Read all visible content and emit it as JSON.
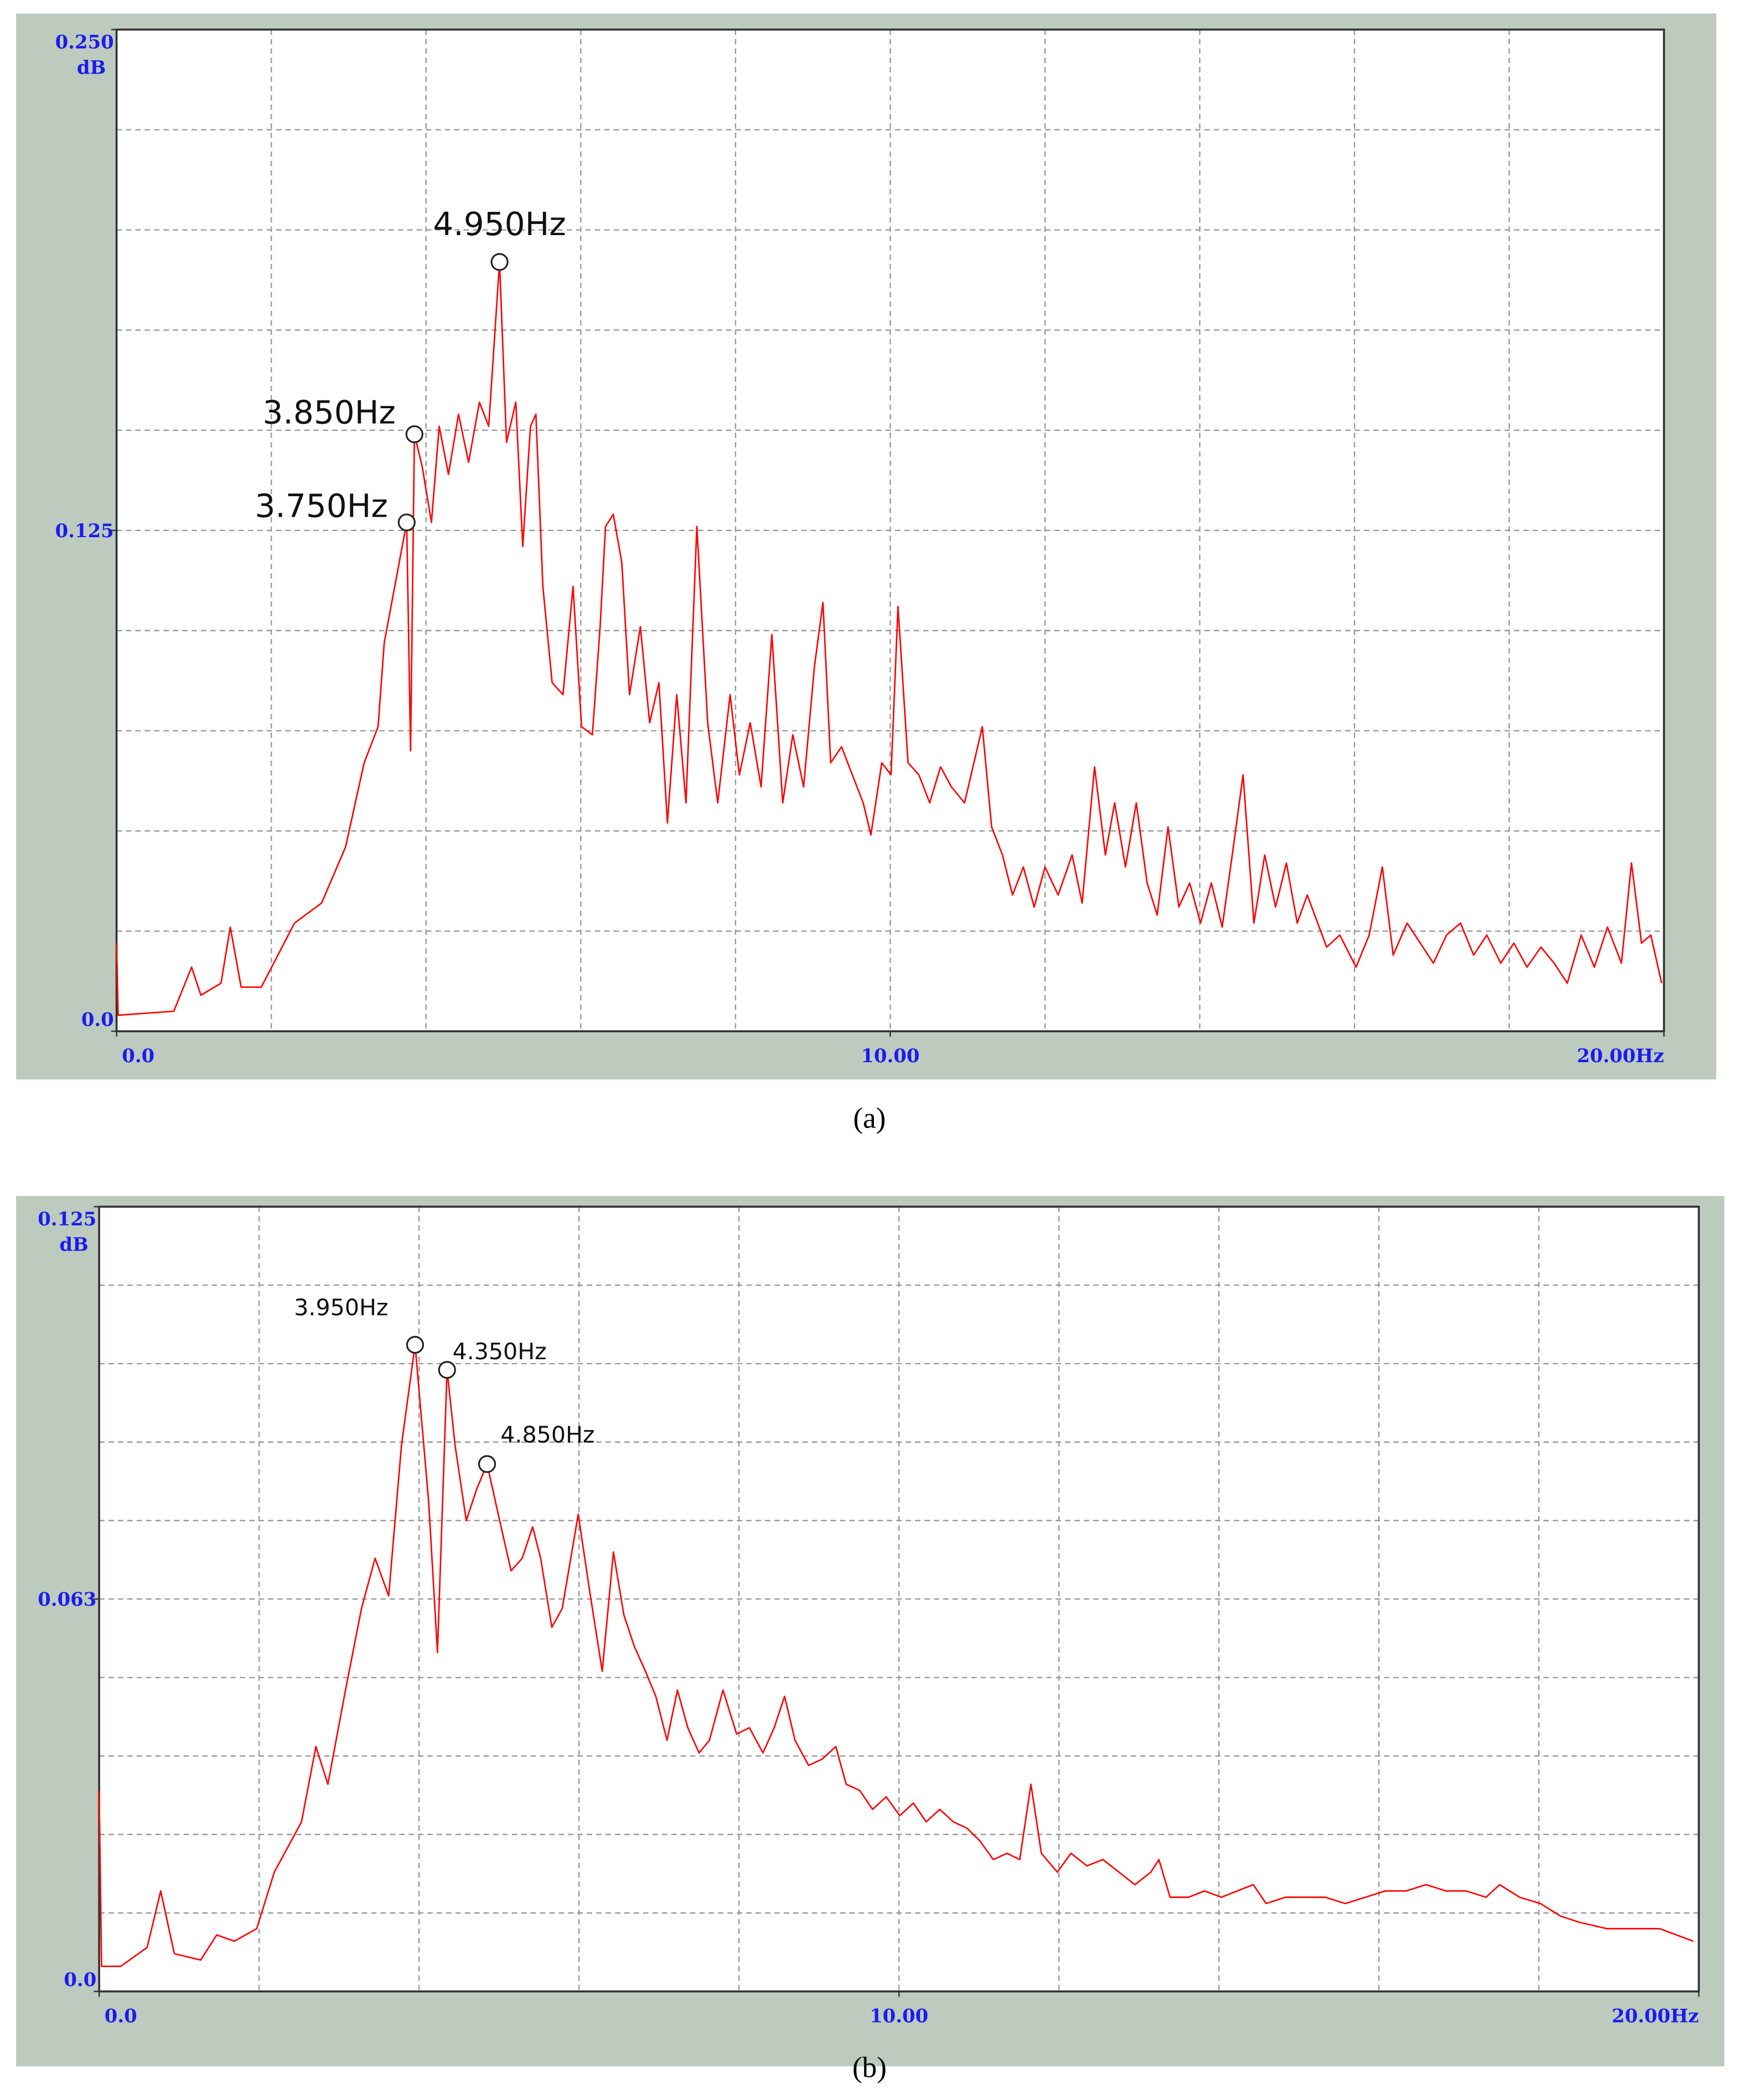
{
  "chart_data": [
    {
      "type": "line",
      "caption": "(a)",
      "ylabel": "dB",
      "color": "#ff0000",
      "xlim": [
        0,
        20
      ],
      "ylim": [
        0,
        0.25
      ],
      "xticks": [
        {
          "value": 0,
          "label": "0.0"
        },
        {
          "value": 10,
          "label": "10.00"
        },
        {
          "value": 20,
          "label": "20.00Hz"
        }
      ],
      "yticks": [
        {
          "value": 0,
          "label": "0.0"
        },
        {
          "value": 0.125,
          "label": "0.125"
        },
        {
          "value": 0.25,
          "label": "0.250"
        }
      ],
      "xgrid": [
        2,
        4,
        6,
        8,
        10,
        12,
        14,
        16,
        18
      ],
      "ygrid": [
        0.025,
        0.05,
        0.075,
        0.1,
        0.125,
        0.15,
        0.175,
        0.2,
        0.225
      ],
      "x": [
        0,
        0.02,
        0.74,
        0.97,
        1.09,
        1.35,
        1.47,
        1.61,
        1.87,
        2.3,
        2.65,
        2.96,
        3.2,
        3.38,
        3.46,
        3.75,
        3.8,
        3.85,
        3.95,
        4.07,
        4.17,
        4.29,
        4.42,
        4.55,
        4.69,
        4.81,
        4.95,
        5.04,
        5.16,
        5.25,
        5.35,
        5.42,
        5.51,
        5.63,
        5.77,
        5.9,
        6.01,
        6.15,
        6.25,
        6.32,
        6.42,
        6.53,
        6.63,
        6.77,
        6.89,
        7.01,
        7.12,
        7.24,
        7.36,
        7.5,
        7.64,
        7.77,
        7.93,
        8.05,
        8.19,
        8.33,
        8.47,
        8.61,
        8.74,
        8.88,
        9.02,
        9.13,
        9.23,
        9.37,
        9.51,
        9.65,
        9.75,
        9.89,
        10.01,
        10.1,
        10.23,
        10.37,
        10.51,
        10.65,
        10.79,
        10.96,
        11.19,
        11.31,
        11.45,
        11.58,
        11.72,
        11.86,
        12.0,
        12.17,
        12.35,
        12.48,
        12.64,
        12.78,
        12.9,
        13.04,
        13.18,
        13.32,
        13.45,
        13.59,
        13.73,
        13.87,
        14.01,
        14.15,
        14.29,
        14.42,
        14.56,
        14.7,
        14.84,
        14.98,
        15.12,
        15.26,
        15.39,
        15.64,
        15.81,
        16.02,
        16.19,
        16.36,
        16.5,
        16.68,
        16.85,
        17.02,
        17.19,
        17.37,
        17.54,
        17.71,
        17.89,
        18.06,
        18.23,
        18.41,
        18.58,
        18.75,
        18.93,
        19.1,
        19.27,
        19.45,
        19.58,
        19.71,
        19.83,
        19.97
      ],
      "values": [
        0.022,
        0.004,
        0.005,
        0.016,
        0.009,
        0.012,
        0.026,
        0.011,
        0.011,
        0.027,
        0.032,
        0.046,
        0.067,
        0.076,
        0.097,
        0.127,
        0.07,
        0.149,
        0.141,
        0.127,
        0.151,
        0.139,
        0.154,
        0.142,
        0.157,
        0.151,
        0.192,
        0.147,
        0.157,
        0.121,
        0.151,
        0.154,
        0.111,
        0.087,
        0.084,
        0.111,
        0.076,
        0.074,
        0.101,
        0.126,
        0.129,
        0.117,
        0.084,
        0.101,
        0.077,
        0.087,
        0.052,
        0.084,
        0.057,
        0.126,
        0.077,
        0.057,
        0.084,
        0.064,
        0.077,
        0.061,
        0.099,
        0.057,
        0.074,
        0.061,
        0.091,
        0.107,
        0.067,
        0.071,
        0.064,
        0.057,
        0.049,
        0.067,
        0.064,
        0.106,
        0.067,
        0.064,
        0.057,
        0.066,
        0.061,
        0.057,
        0.076,
        0.051,
        0.044,
        0.034,
        0.041,
        0.031,
        0.041,
        0.034,
        0.044,
        0.032,
        0.066,
        0.044,
        0.057,
        0.041,
        0.057,
        0.037,
        0.029,
        0.051,
        0.031,
        0.037,
        0.027,
        0.037,
        0.026,
        0.044,
        0.064,
        0.027,
        0.044,
        0.031,
        0.042,
        0.027,
        0.034,
        0.021,
        0.024,
        0.016,
        0.024,
        0.041,
        0.019,
        0.027,
        0.022,
        0.017,
        0.024,
        0.027,
        0.019,
        0.024,
        0.017,
        0.022,
        0.016,
        0.021,
        0.017,
        0.012,
        0.024,
        0.016,
        0.026,
        0.017,
        0.042,
        0.022,
        0.024,
        0.012
      ],
      "annotations": [
        {
          "x": 4.95,
          "y": 0.192,
          "label": "4.950Hz"
        },
        {
          "x": 3.85,
          "y": 0.149,
          "label": "3.850Hz"
        },
        {
          "x": 3.75,
          "y": 0.127,
          "label": "3.750Hz"
        }
      ]
    },
    {
      "type": "line",
      "caption": "(b)",
      "ylabel": "dB",
      "color": "#ff0000",
      "xlim": [
        0,
        20
      ],
      "ylim": [
        0,
        0.125
      ],
      "xticks": [
        {
          "value": 0,
          "label": "0.0"
        },
        {
          "value": 10,
          "label": "10.00"
        },
        {
          "value": 20,
          "label": "20.00Hz"
        }
      ],
      "yticks": [
        {
          "value": 0,
          "label": "0.0"
        },
        {
          "value": 0.0625,
          "label": "0.063"
        },
        {
          "value": 0.125,
          "label": "0.125"
        }
      ],
      "xgrid": [
        2,
        4,
        6,
        8,
        10,
        12,
        14,
        16,
        18
      ],
      "ygrid": [
        0.0125,
        0.025,
        0.0375,
        0.05,
        0.0625,
        0.075,
        0.0875,
        0.1,
        0.1125
      ],
      "x": [
        0,
        0.03,
        0.27,
        0.6,
        0.77,
        0.94,
        1.27,
        1.47,
        1.69,
        1.97,
        2.19,
        2.36,
        2.53,
        2.71,
        2.86,
        3.08,
        3.28,
        3.45,
        3.62,
        3.78,
        3.95,
        4.12,
        4.23,
        4.35,
        4.45,
        4.59,
        4.72,
        4.85,
        4.99,
        5.15,
        5.29,
        5.42,
        5.52,
        5.66,
        5.79,
        5.99,
        6.13,
        6.29,
        6.43,
        6.56,
        6.69,
        6.83,
        6.96,
        7.1,
        7.23,
        7.36,
        7.5,
        7.63,
        7.8,
        7.97,
        8.13,
        8.3,
        8.44,
        8.57,
        8.7,
        8.87,
        9.04,
        9.21,
        9.34,
        9.51,
        9.67,
        9.84,
        10.01,
        10.18,
        10.34,
        10.51,
        10.68,
        10.85,
        11.01,
        11.18,
        11.35,
        11.51,
        11.65,
        11.78,
        11.98,
        12.15,
        12.35,
        12.55,
        12.75,
        12.95,
        13.15,
        13.25,
        13.39,
        13.62,
        13.82,
        14.03,
        14.23,
        14.43,
        14.59,
        14.83,
        15.08,
        15.33,
        15.58,
        15.83,
        16.08,
        16.34,
        16.59,
        16.84,
        17.09,
        17.34,
        17.51,
        17.76,
        18.02,
        18.27,
        18.51,
        18.85,
        19.18,
        19.51,
        19.93
      ],
      "values": [
        0.032,
        0.004,
        0.004,
        0.007,
        0.016,
        0.006,
        0.005,
        0.009,
        0.008,
        0.01,
        0.019,
        0.023,
        0.027,
        0.039,
        0.033,
        0.048,
        0.061,
        0.069,
        0.063,
        0.087,
        0.103,
        0.078,
        0.054,
        0.099,
        0.087,
        0.075,
        0.08,
        0.084,
        0.076,
        0.067,
        0.069,
        0.074,
        0.069,
        0.058,
        0.061,
        0.076,
        0.064,
        0.051,
        0.07,
        0.06,
        0.055,
        0.051,
        0.047,
        0.04,
        0.048,
        0.042,
        0.038,
        0.04,
        0.048,
        0.041,
        0.042,
        0.038,
        0.042,
        0.047,
        0.04,
        0.036,
        0.037,
        0.039,
        0.033,
        0.032,
        0.029,
        0.031,
        0.028,
        0.03,
        0.027,
        0.029,
        0.027,
        0.026,
        0.024,
        0.021,
        0.022,
        0.021,
        0.033,
        0.022,
        0.019,
        0.022,
        0.02,
        0.021,
        0.019,
        0.017,
        0.019,
        0.021,
        0.015,
        0.015,
        0.016,
        0.015,
        0.016,
        0.017,
        0.014,
        0.015,
        0.015,
        0.015,
        0.014,
        0.015,
        0.016,
        0.016,
        0.017,
        0.016,
        0.016,
        0.015,
        0.017,
        0.015,
        0.014,
        0.012,
        0.011,
        0.01,
        0.01,
        0.01,
        0.008
      ],
      "annotations": [
        {
          "x": 3.95,
          "y": 0.103,
          "label": "3.950Hz"
        },
        {
          "x": 4.35,
          "y": 0.099,
          "label": "4.350Hz"
        },
        {
          "x": 4.85,
          "y": 0.084,
          "label": "4.850Hz"
        }
      ]
    }
  ]
}
